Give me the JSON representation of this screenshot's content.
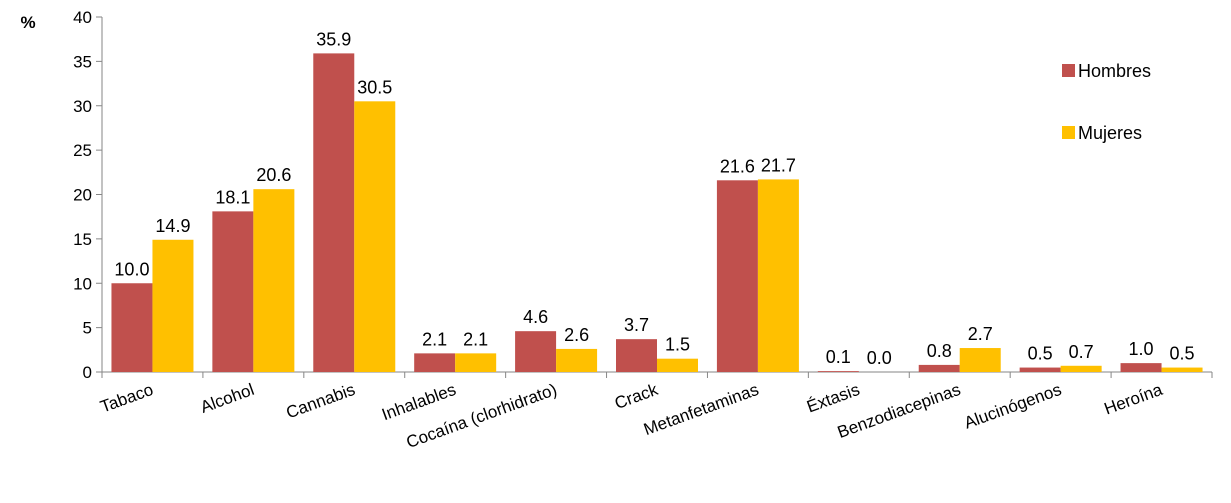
{
  "chart_data": {
    "type": "bar",
    "title": "",
    "xlabel": "",
    "ylabel": "%",
    "ylim": [
      0,
      40
    ],
    "yticks": [
      0,
      5,
      10,
      15,
      20,
      25,
      30,
      35,
      40
    ],
    "grid": false,
    "legend_position": "right",
    "categories": [
      "Tabaco",
      "Alcohol",
      "Cannabis",
      "Inhalables",
      "Cocaína (clorhidrato)",
      "Crack",
      "Metanfetaminas",
      "Éxtasis",
      "Benzodiacepinas",
      "Alucinógenos",
      "Heroína"
    ],
    "series": [
      {
        "name": "Hombres",
        "color": "#C0504D",
        "values": [
          10.0,
          18.1,
          35.9,
          2.1,
          4.6,
          3.7,
          21.6,
          0.1,
          0.8,
          0.5,
          1.0
        ]
      },
      {
        "name": "Mujeres",
        "color": "#FFC000",
        "values": [
          14.9,
          20.6,
          30.5,
          2.1,
          2.6,
          1.5,
          21.7,
          0.0,
          2.7,
          0.7,
          0.5
        ]
      }
    ]
  }
}
